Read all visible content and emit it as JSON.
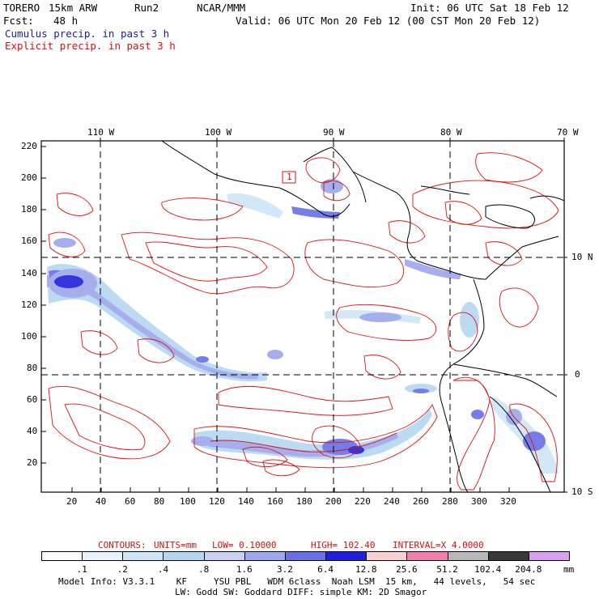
{
  "header": {
    "model": "TORERO",
    "resolution": "15km ARW",
    "run": "Run2",
    "org": "NCAR/MMM",
    "init": "Init: 06 UTC Sat 18 Feb 12",
    "fcst_label": "Fcst:",
    "fcst_value": "48 h",
    "valid": "Valid: 06 UTC Mon 20 Feb 12 (00 CST Mon 20 Feb 12)",
    "line_cumulus": "Cumulus precip. in past 3 h",
    "line_explicit": "Explicit precip. in past 3 h"
  },
  "map": {
    "lon_labels": [
      "110 W",
      "100 W",
      "90 W",
      "80 W",
      "70 W"
    ],
    "lat_labels": [
      "10 N",
      "0",
      "10 S"
    ],
    "y_ticks": [
      "220",
      "200",
      "180",
      "160",
      "140",
      "120",
      "100",
      "80",
      "60",
      "40",
      "20"
    ],
    "x_ticks": [
      "20",
      "40",
      "60",
      "80",
      "100",
      "120",
      "140",
      "160",
      "180",
      "200",
      "220",
      "240",
      "260",
      "280",
      "300",
      "320"
    ],
    "marker_label": "1"
  },
  "contours": {
    "label": "CONTOURS:",
    "units": "UNITS=mm",
    "low": "LOW= 0.10000",
    "high": "HIGH= 102.40",
    "interval": "INTERVAL=X 4.0000"
  },
  "colorbar": {
    "labels": [
      ".1",
      ".2",
      ".4",
      ".8",
      "1.6",
      "3.2",
      "6.4",
      "12.8",
      "25.6",
      "51.2",
      "102.4",
      "204.8"
    ],
    "units": "mm",
    "colors": [
      "#ffffff",
      "#e8f4fc",
      "#cfe6f7",
      "#b5d6f0",
      "#c8d0f4",
      "#9ea6ec",
      "#6870e6",
      "#2020dc",
      "#f8d0d0",
      "#f080b0",
      "#b8b8b8",
      "#383838",
      "#d8a0f0"
    ]
  },
  "footer": {
    "line1": "Model Info: V3.3.1    KF     YSU PBL   WDM 6class  Noah LSM  15 km,   44 levels,   54 sec",
    "line2": "LW: Godd SW: Goddard DIFF: simple KM: 2D Smagor"
  }
}
